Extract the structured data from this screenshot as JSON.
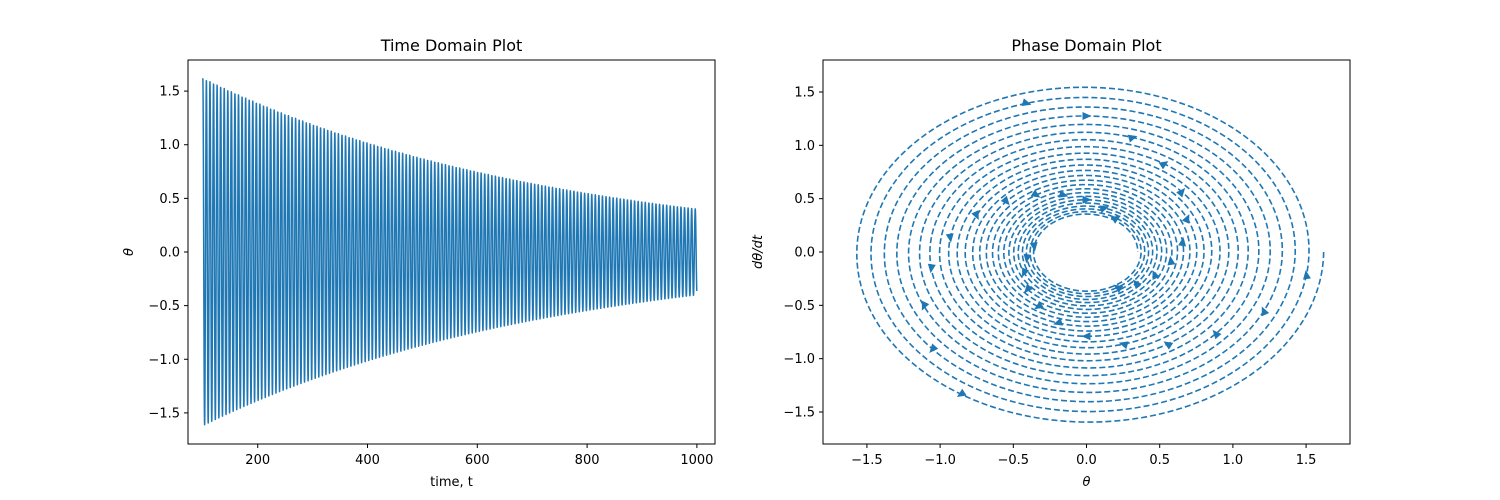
{
  "chart_data": [
    {
      "type": "line",
      "title": "Time Domain Plot",
      "xlabel": "time, t",
      "ylabel": "θ",
      "xlim": [
        73,
        1033
      ],
      "ylim": [
        -1.79,
        1.79
      ],
      "xticks": [
        "200",
        "400",
        "600",
        "800",
        "1000"
      ],
      "yticks": [
        "−1.5",
        "−1.0",
        "−0.5",
        "0.0",
        "0.5",
        "1.0",
        "1.5"
      ],
      "series": [
        {
          "color": "#1f77b4",
          "style": "solid",
          "t_start": 100,
          "t_end": 1000,
          "period": 6.5,
          "amplitude_start": 1.62,
          "amplitude_end": 0.4,
          "x": [
            100,
            200,
            300,
            400,
            500,
            600,
            700,
            800,
            900,
            1000
          ],
          "y_envelope": [
            1.62,
            1.4,
            1.21,
            1.05,
            0.91,
            0.79,
            0.68,
            0.59,
            0.49,
            0.4
          ]
        }
      ]
    },
    {
      "type": "line",
      "title": "Phase Domain Plot",
      "xlabel": "θ",
      "ylabel": "dθ/dt",
      "xlim": [
        -1.8,
        1.8
      ],
      "ylim": [
        -1.8,
        1.8
      ],
      "xticks": [
        "−1.5",
        "−1.0",
        "−0.5",
        "0.0",
        "0.5",
        "1.0",
        "1.5"
      ],
      "yticks": [
        "−1.5",
        "−1.0",
        "−0.5",
        "0.0",
        "0.5",
        "1.0",
        "1.5"
      ],
      "series": [
        {
          "color": "#1f77b4",
          "style": "dashed",
          "markers": "triangle",
          "radius_outer": 1.62,
          "radius_inner": 0.35,
          "turns": 24
        }
      ]
    }
  ]
}
